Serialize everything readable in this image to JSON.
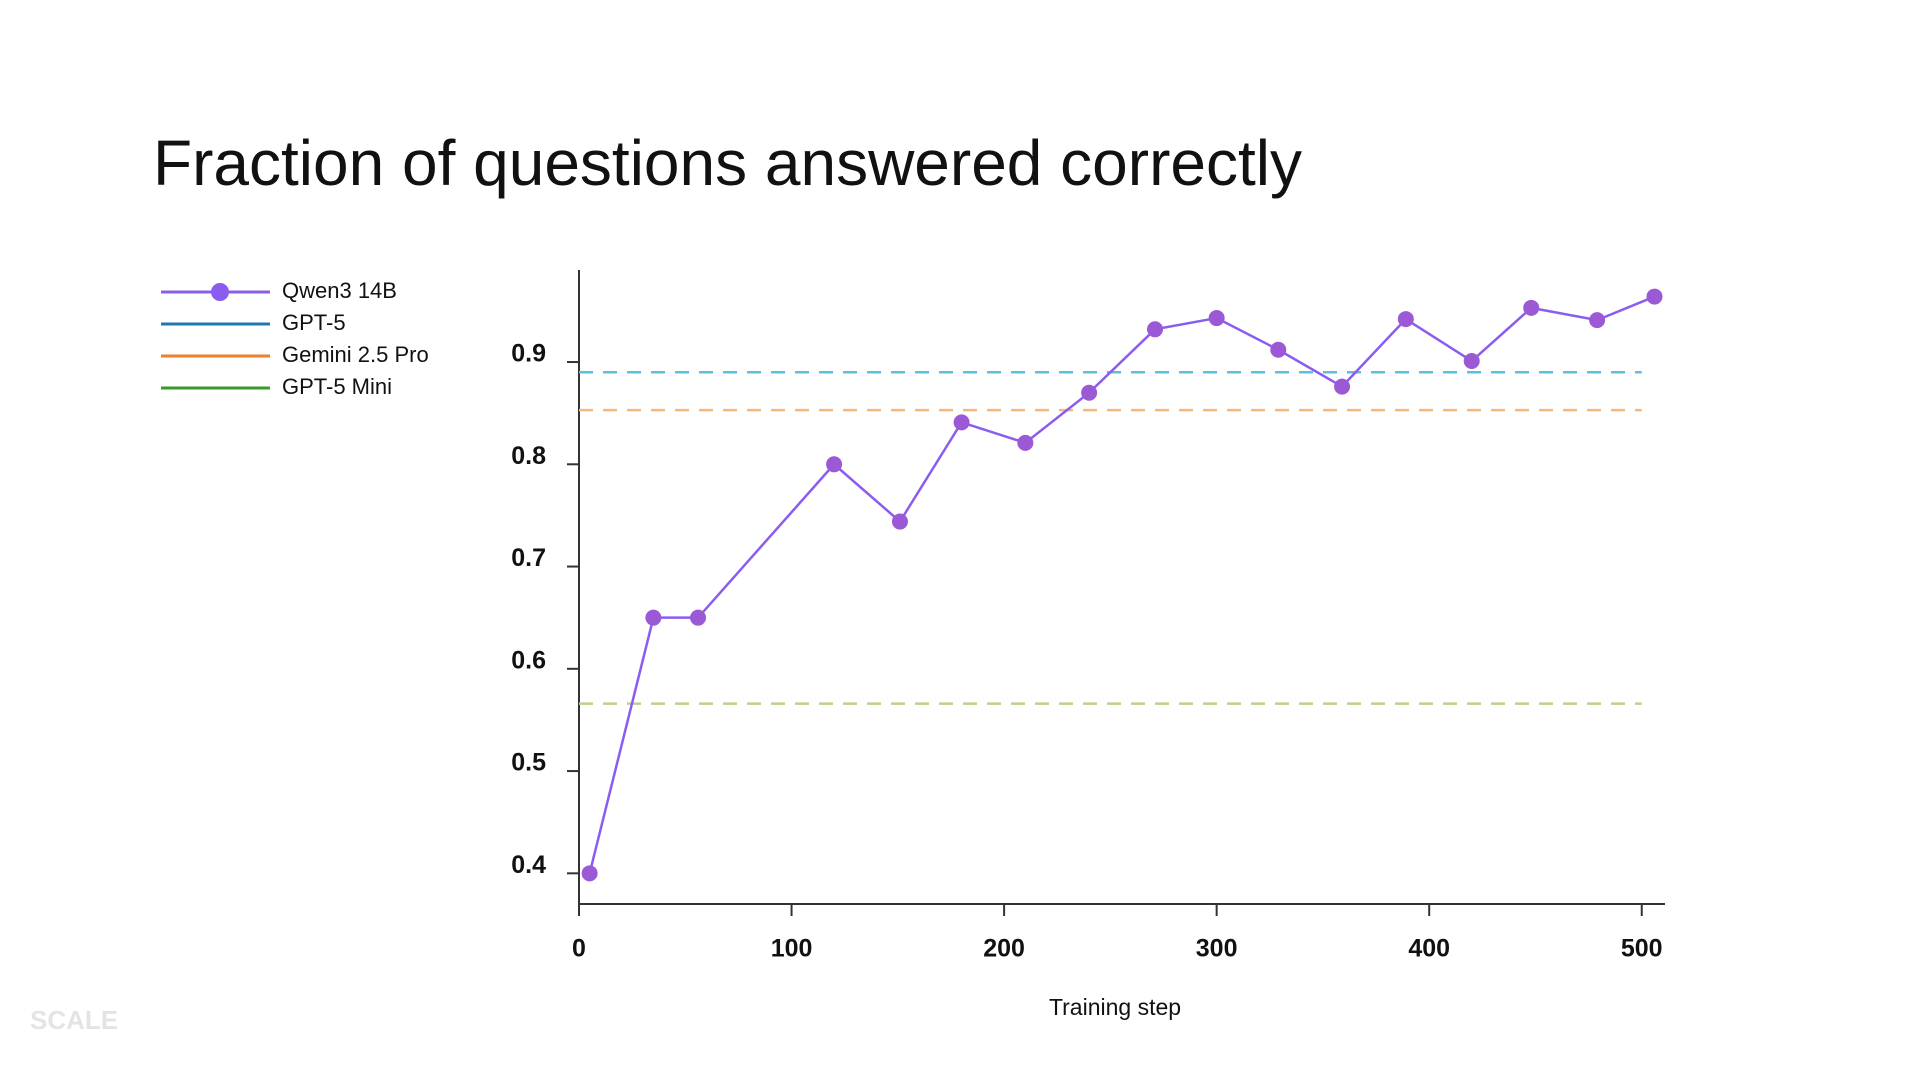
{
  "chart_data": {
    "type": "line",
    "title": "Fraction of questions answered correctly",
    "x_label": "Training step",
    "watermark": "SCALE",
    "x": [
      5,
      35,
      56,
      120,
      151,
      180,
      210,
      240,
      271,
      300,
      329,
      359,
      389,
      420,
      448,
      479,
      506
    ],
    "series": [
      {
        "name": "Qwen3 14B",
        "color": "#8a5cf0",
        "marker_color": "#9b59d6",
        "values": [
          0.4,
          0.65,
          0.65,
          0.8,
          0.744,
          0.841,
          0.821,
          0.87,
          0.932,
          0.943,
          0.912,
          0.876,
          0.942,
          0.901,
          0.953,
          0.941,
          0.964
        ]
      },
      {
        "name": "GPT-5",
        "color": "#1f77b4",
        "line_color": "#5bc0de",
        "value": 0.89
      },
      {
        "name": "Gemini 2.5 Pro",
        "color": "#f07f2a",
        "line_color": "#f5b77a",
        "value": 0.853
      },
      {
        "name": "GPT-5 Mini",
        "color": "#3a9a2a",
        "line_color": "#b9d38a",
        "value": 0.566
      }
    ],
    "xlim": [
      0,
      510
    ],
    "xticks": [
      0,
      100,
      200,
      300,
      400,
      500
    ],
    "ylim": [
      0.37,
      0.99
    ],
    "yticks": [
      0.4,
      0.5,
      0.6,
      0.7,
      0.8,
      0.9
    ],
    "legend": "upper left",
    "grid": false
  }
}
